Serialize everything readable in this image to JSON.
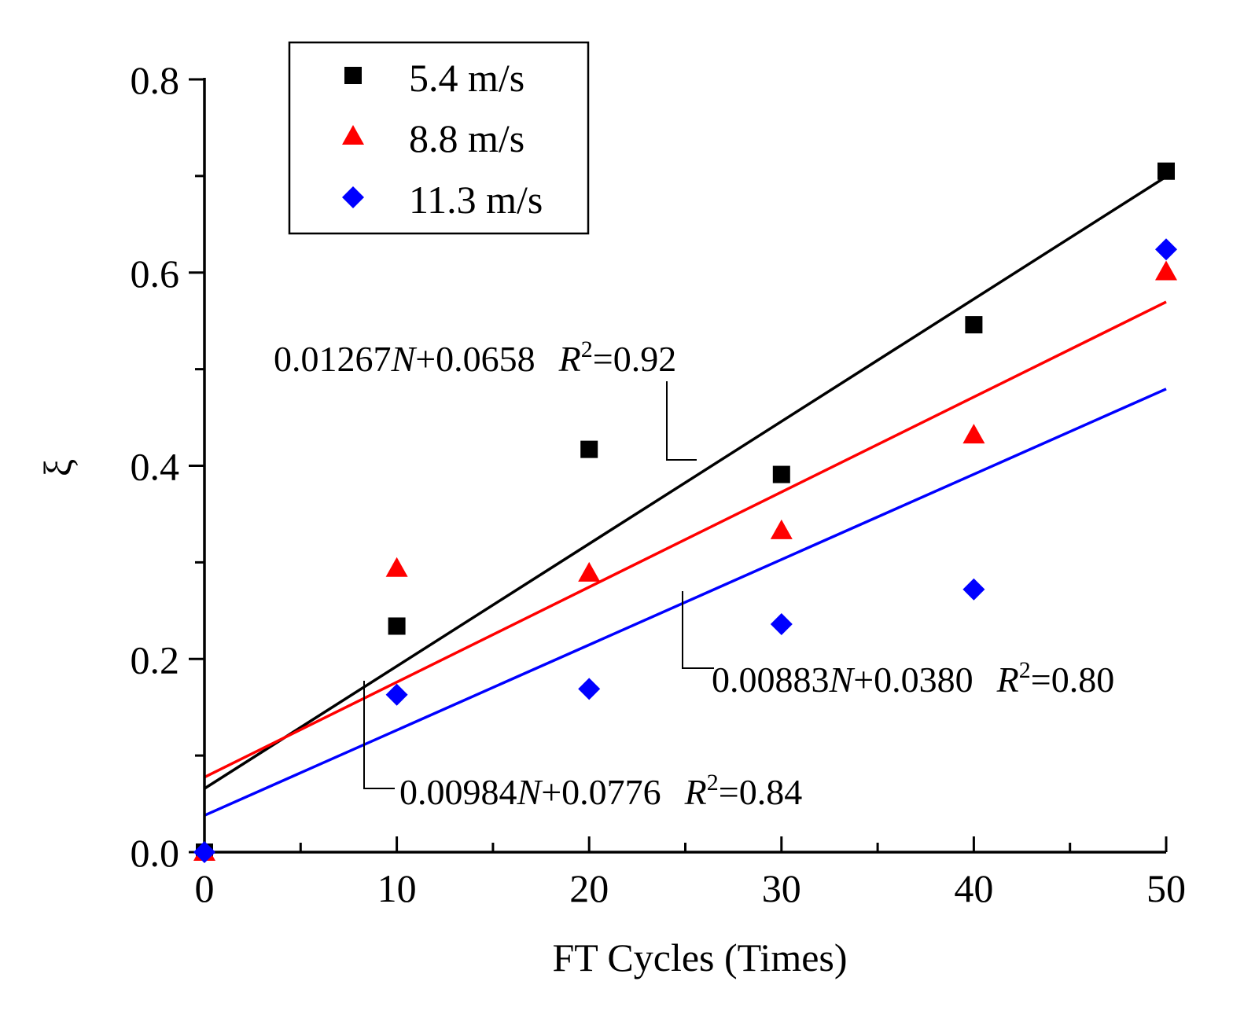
{
  "chart_data": {
    "type": "scatter",
    "title": "",
    "xlabel": "FT Cycles (Times)",
    "ylabel": "ξ",
    "xlim": [
      0,
      50
    ],
    "ylim": [
      0,
      0.8
    ],
    "x_ticks": [
      "0",
      "10",
      "20",
      "30",
      "40",
      "50"
    ],
    "y_ticks": [
      "0.0",
      "0.2",
      "0.4",
      "0.6",
      "0.8"
    ],
    "legend_position": "top-left",
    "series": [
      {
        "name": "5.4 m/s",
        "marker": "square",
        "color": "#000000",
        "x": [
          0,
          10,
          20,
          30,
          40,
          50
        ],
        "y": [
          0.0,
          0.234,
          0.417,
          0.391,
          0.546,
          0.705
        ],
        "fit": {
          "slope": 0.01267,
          "intercept": 0.0658,
          "r2": "0.92"
        }
      },
      {
        "name": "8.8 m/s",
        "marker": "triangle",
        "color": "#ff0000",
        "x": [
          0,
          10,
          20,
          30,
          40,
          50
        ],
        "y": [
          0.0,
          0.294,
          0.289,
          0.333,
          0.432,
          0.601
        ],
        "fit": {
          "slope": 0.00984,
          "intercept": 0.0776,
          "r2": "0.84"
        }
      },
      {
        "name": "11.3 m/s",
        "marker": "diamond",
        "color": "#0000ff",
        "x": [
          0,
          10,
          20,
          30,
          40,
          50
        ],
        "y": [
          0.0,
          0.163,
          0.169,
          0.236,
          0.272,
          0.624
        ],
        "fit": {
          "slope": 0.00883,
          "intercept": 0.038,
          "r2": "0.80"
        }
      }
    ],
    "annotations": [
      {
        "series": "5.4 m/s",
        "coef": "0.01267",
        "var": "N",
        "const": "+0.0658",
        "r": "R",
        "sup": "2",
        "eq": "=0.92"
      },
      {
        "series": "11.3 m/s",
        "coef": "0.00883",
        "var": "N",
        "const": "+0.0380",
        "r": "R",
        "sup": "2",
        "eq": "=0.80"
      },
      {
        "series": "8.8 m/s",
        "coef": "0.00984",
        "var": "N",
        "const": "+0.0776",
        "r": "R",
        "sup": "2",
        "eq": "=0.84"
      }
    ]
  }
}
